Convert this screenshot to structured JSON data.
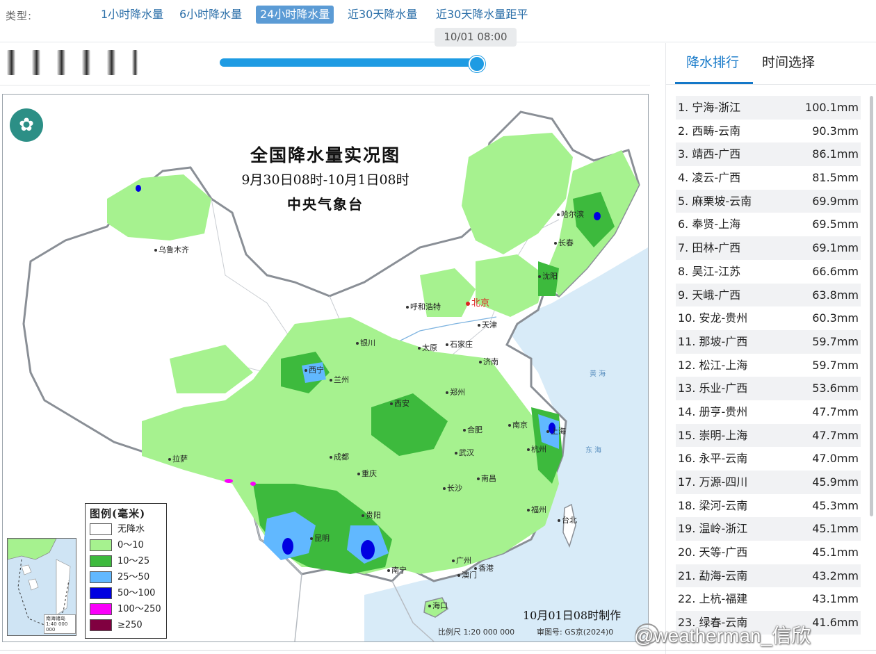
{
  "typebar": {
    "label": "类型:",
    "options": [
      "1小时降水量",
      "6小时降水量",
      "24小时降水量",
      "近30天降水量",
      "近30天降水量距平"
    ],
    "active_index": 2
  },
  "slider": {
    "tooltip": "10/01 08:00",
    "progress": 1.0,
    "accent": "#1e9be3"
  },
  "map": {
    "logo_icon": "cma-logo-icon",
    "title": "全国降水量实况图",
    "subtitle": "9月30日08时-10月1日08时",
    "issuer": "中央气象台",
    "cities": {
      "urumqi": "乌鲁木齐",
      "harbin": "哈尔滨",
      "changchun": "长春",
      "shenyang": "沈阳",
      "hohhot": "呼和浩特",
      "beijing": "北京",
      "tianjin": "天津",
      "yinchuan": "银川",
      "taiyuan": "太原",
      "shijiazhuang": "石家庄",
      "jinan": "济南",
      "xining": "西宁",
      "lanzhou": "兰州",
      "zhengzhou": "郑州",
      "xian": "西安",
      "hefei": "合肥",
      "nanjing": "南京",
      "shanghai": "上海",
      "lhasa": "拉萨",
      "chengdu": "成都",
      "wuhan": "武汉",
      "hangzhou": "杭州",
      "chongqing": "重庆",
      "nanchang": "南昌",
      "changsha": "长沙",
      "fuzhou": "福州",
      "taipei": "台北",
      "guiyang": "贵阳",
      "kunming": "昆明",
      "guangzhou": "广州",
      "xianggang": "香港",
      "aomen": "澳门",
      "nanning": "南宁",
      "haikou": "海口"
    },
    "seas": {
      "huanghai": "黄 海",
      "donghai": "东 海"
    },
    "legend": {
      "title": "图例(毫米)",
      "items": [
        {
          "label": "无降水",
          "color": "#ffffff"
        },
        {
          "label": "0～10",
          "color": "#a6f28f"
        },
        {
          "label": "10～25",
          "color": "#3dba3d"
        },
        {
          "label": "25～50",
          "color": "#61b8ff"
        },
        {
          "label": "50～100",
          "color": "#0000e1"
        },
        {
          "label": "100～250",
          "color": "#fa00fa"
        },
        {
          "label": "≥250",
          "color": "#800040"
        }
      ]
    },
    "inset_caption": "南海诸岛\n1:40 000 000",
    "made_text": "10月01日08时制作",
    "scale_text": "比例尺 1:20 000 000",
    "approval_text": "审图号: GS京(2024)0"
  },
  "right_panel": {
    "tabs": [
      "降水排行",
      "时间选择"
    ],
    "active_tab": 0,
    "rankings": [
      {
        "name": "1. 宁海-浙江",
        "value": "100.1mm"
      },
      {
        "name": "2. 西畴-云南",
        "value": "90.3mm"
      },
      {
        "name": "3. 靖西-广西",
        "value": "86.1mm"
      },
      {
        "name": "4. 凌云-广西",
        "value": "81.5mm"
      },
      {
        "name": "5. 麻栗坡-云南",
        "value": "69.9mm"
      },
      {
        "name": "6. 奉贤-上海",
        "value": "69.5mm"
      },
      {
        "name": "7. 田林-广西",
        "value": "69.1mm"
      },
      {
        "name": "8. 吴江-江苏",
        "value": "66.6mm"
      },
      {
        "name": "9. 天峨-广西",
        "value": "63.8mm"
      },
      {
        "name": "10. 安龙-贵州",
        "value": "60.3mm"
      },
      {
        "name": "11. 那坡-广西",
        "value": "59.7mm"
      },
      {
        "name": "12. 松江-上海",
        "value": "59.7mm"
      },
      {
        "name": "13. 乐业-广西",
        "value": "53.6mm"
      },
      {
        "name": "14. 册亨-贵州",
        "value": "47.7mm"
      },
      {
        "name": "15. 崇明-上海",
        "value": "47.7mm"
      },
      {
        "name": "16. 永平-云南",
        "value": "47.0mm"
      },
      {
        "name": "17. 万源-四川",
        "value": "45.9mm"
      },
      {
        "name": "18. 梁河-云南",
        "value": "45.3mm"
      },
      {
        "name": "19. 温岭-浙江",
        "value": "45.1mm"
      },
      {
        "name": "20. 天等-广西",
        "value": "45.1mm"
      },
      {
        "name": "21. 勐海-云南",
        "value": "43.2mm"
      },
      {
        "name": "22. 上杭-福建",
        "value": "43.1mm"
      },
      {
        "name": "23. 绿春-云南",
        "value": "41.6mm"
      }
    ]
  },
  "watermark": "@weatherman_信欣"
}
